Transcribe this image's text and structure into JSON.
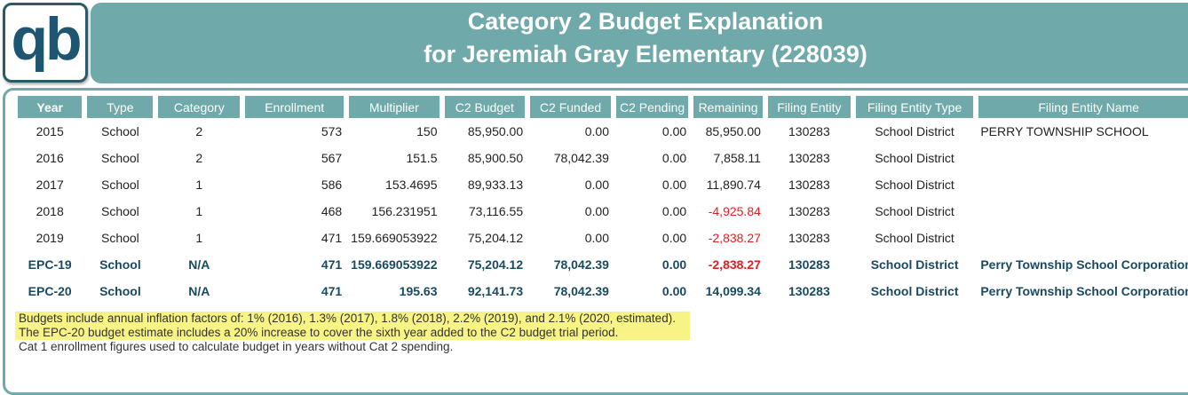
{
  "logo": {
    "text": "qb"
  },
  "header": {
    "line1": "Category 2 Budget Explanation",
    "line2": "for Jeremiah Gray Elementary (228039)"
  },
  "table": {
    "columns": [
      "Year",
      "Type",
      "Category",
      "Enrollment",
      "Multiplier",
      "C2 Budget",
      "C2 Funded",
      "C2 Pending",
      "Remaining",
      "Filing Entity",
      "Filing Entity Type",
      "Filing Entity Name"
    ],
    "rows": [
      {
        "year": "2015",
        "type": "School",
        "category": "2",
        "enrollment": "573",
        "multiplier": "150",
        "budget": "85,950.00",
        "funded": "0.00",
        "pending": "0.00",
        "remaining": "85,950.00",
        "entity": "130283",
        "entity_type": "School District",
        "entity_name": "PERRY TOWNSHIP SCHOOL",
        "negative": false,
        "bold": false
      },
      {
        "year": "2016",
        "type": "School",
        "category": "2",
        "enrollment": "567",
        "multiplier": "151.5",
        "budget": "85,900.50",
        "funded": "78,042.39",
        "pending": "0.00",
        "remaining": "7,858.11",
        "entity": "130283",
        "entity_type": "School District",
        "entity_name": "",
        "negative": false,
        "bold": false
      },
      {
        "year": "2017",
        "type": "School",
        "category": "1",
        "enrollment": "586",
        "multiplier": "153.4695",
        "budget": "89,933.13",
        "funded": "0.00",
        "pending": "0.00",
        "remaining": "11,890.74",
        "entity": "130283",
        "entity_type": "School District",
        "entity_name": "",
        "negative": false,
        "bold": false
      },
      {
        "year": "2018",
        "type": "School",
        "category": "1",
        "enrollment": "468",
        "multiplier": "156.231951",
        "budget": "73,116.55",
        "funded": "0.00",
        "pending": "0.00",
        "remaining": "-4,925.84",
        "entity": "130283",
        "entity_type": "School District",
        "entity_name": "",
        "negative": true,
        "bold": false
      },
      {
        "year": "2019",
        "type": "School",
        "category": "1",
        "enrollment": "471",
        "multiplier": "159.669053922",
        "budget": "75,204.12",
        "funded": "0.00",
        "pending": "0.00",
        "remaining": "-2,838.27",
        "entity": "130283",
        "entity_type": "School District",
        "entity_name": "",
        "negative": true,
        "bold": false
      },
      {
        "year": "EPC-19",
        "type": "School",
        "category": "N/A",
        "enrollment": "471",
        "multiplier": "159.669053922",
        "budget": "75,204.12",
        "funded": "78,042.39",
        "pending": "0.00",
        "remaining": "-2,838.27",
        "entity": "130283",
        "entity_type": "School District",
        "entity_name": "Perry Township School Corporation",
        "negative": true,
        "bold": true
      },
      {
        "year": "EPC-20",
        "type": "School",
        "category": "N/A",
        "enrollment": "471",
        "multiplier": "195.63",
        "budget": "92,141.73",
        "funded": "78,042.39",
        "pending": "0.00",
        "remaining": "14,099.34",
        "entity": "130283",
        "entity_type": "School District",
        "entity_name": "Perry Township School Corporation",
        "negative": false,
        "bold": true
      }
    ]
  },
  "notes": [
    "Budgets include annual inflation factors of: 1% (2016), 1.3% (2017), 1.8% (2018), 2.2% (2019), and 2.1% (2020, estimated).",
    "The EPC-20 budget estimate includes a 20% increase to cover the sixth year added to the C2 budget trial period.",
    "Cat 1 enrollment figures used to calculate budget in years without Cat 2 spending."
  ],
  "colors": {
    "teal": "#6fa9a9",
    "negative": "#e02020",
    "highlight": "#f7f384",
    "logo": "#1e5570"
  }
}
